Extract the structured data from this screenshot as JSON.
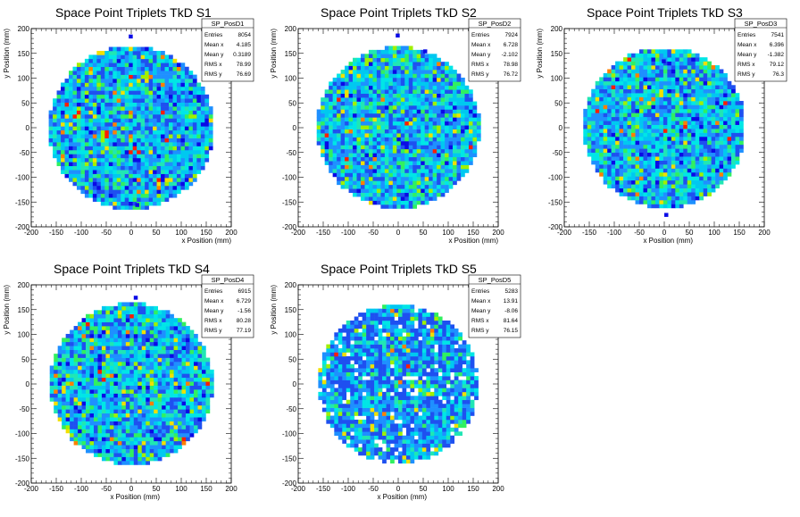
{
  "chart_data": [
    {
      "type": "heatmap",
      "title": "Space Point Triplets TkD S1",
      "xlabel": "x Position (mm)",
      "ylabel": "y Position (mm)",
      "xlim": [
        -200,
        200
      ],
      "ylim": [
        -200,
        200
      ],
      "ticks": [
        "-200",
        "-150",
        "-100",
        "-50",
        "0",
        "50",
        "100",
        "150",
        "200"
      ],
      "distribution": "disk",
      "disk_radius": 165,
      "bin_width": 8,
      "outliers": [
        [
          -5,
          180
        ],
        [
          8,
          -160
        ]
      ],
      "stats": {
        "name": "SP_PosD1",
        "rows": [
          {
            "label": "Entries",
            "value": "8054"
          },
          {
            "label": "Mean x",
            "value": "4.185"
          },
          {
            "label": "Mean y",
            "value": "0.3189"
          },
          {
            "label": "RMS x",
            "value": "78.99"
          },
          {
            "label": "RMS y",
            "value": "76.69"
          }
        ]
      }
    },
    {
      "type": "heatmap",
      "title": "Space Point Triplets TkD S2",
      "xlabel": "x Position (mm)",
      "ylabel": "y Position (mm)",
      "xlim": [
        -200,
        200
      ],
      "ylim": [
        -200,
        200
      ],
      "ticks": [
        "-200",
        "-150",
        "-100",
        "-50",
        "0",
        "50",
        "100",
        "150",
        "200"
      ],
      "distribution": "disk",
      "disk_radius": 163,
      "bin_width": 8,
      "outliers": [
        [
          -5,
          182
        ],
        [
          50,
          150
        ]
      ],
      "stats": {
        "name": "SP_PosD2",
        "rows": [
          {
            "label": "Entries",
            "value": "7924"
          },
          {
            "label": "Mean x",
            "value": "6.728"
          },
          {
            "label": "Mean y",
            "value": "-2.102"
          },
          {
            "label": "RMS x",
            "value": "78.98"
          },
          {
            "label": "RMS y",
            "value": "76.72"
          }
        ]
      }
    },
    {
      "type": "heatmap",
      "title": "Space Point Triplets TkD S3",
      "xlabel": "x Position (mm)",
      "ylabel": "y Position (mm)",
      "xlim": [
        -200,
        200
      ],
      "ylim": [
        -200,
        200
      ],
      "ticks": [
        "-200",
        "-150",
        "-100",
        "-50",
        "0",
        "50",
        "100",
        "150",
        "200"
      ],
      "distribution": "disk",
      "disk_radius": 162,
      "bin_width": 8,
      "outliers": [
        [
          0,
          -180
        ],
        [
          -5,
          130
        ]
      ],
      "stats": {
        "name": "SP_PosD3",
        "rows": [
          {
            "label": "Entries",
            "value": "7541"
          },
          {
            "label": "Mean x",
            "value": "6.396"
          },
          {
            "label": "Mean y",
            "value": "-1.382"
          },
          {
            "label": "RMS x",
            "value": "79.12"
          },
          {
            "label": "RMS y",
            "value": "76.3"
          }
        ]
      }
    },
    {
      "type": "heatmap",
      "title": "Space Point Triplets TkD S4",
      "xlabel": "x Position (mm)",
      "ylabel": "y Position (mm)",
      "xlim": [
        -200,
        200
      ],
      "ylim": [
        -200,
        200
      ],
      "ticks": [
        "-200",
        "-150",
        "-100",
        "-50",
        "0",
        "50",
        "100",
        "150",
        "200"
      ],
      "distribution": "disk",
      "disk_radius": 163,
      "bin_width": 8,
      "outliers": [
        [
          5,
          170
        ]
      ],
      "stats": {
        "name": "SP_PosD4",
        "rows": [
          {
            "label": "Entries",
            "value": "6915"
          },
          {
            "label": "Mean x",
            "value": "6.729"
          },
          {
            "label": "Mean y",
            "value": "-1.56"
          },
          {
            "label": "RMS x",
            "value": "80.28"
          },
          {
            "label": "RMS y",
            "value": "77.19"
          }
        ]
      }
    },
    {
      "type": "heatmap",
      "title": "Space Point Triplets TkD S5",
      "xlabel": "x Position (mm)",
      "ylabel": "y Position (mm)",
      "xlim": [
        -200,
        200
      ],
      "ylim": [
        -200,
        200
      ],
      "ticks": [
        "-200",
        "-150",
        "-100",
        "-50",
        "0",
        "50",
        "100",
        "150",
        "200"
      ],
      "distribution": "disk",
      "disk_radius": 160,
      "bin_width": 8,
      "outliers": [],
      "stats": {
        "name": "SP_PosD5",
        "rows": [
          {
            "label": "Entries",
            "value": "5283"
          },
          {
            "label": "Mean x",
            "value": "13.91"
          },
          {
            "label": "Mean y",
            "value": "-8.06"
          },
          {
            "label": "RMS x",
            "value": "81.64"
          },
          {
            "label": "RMS y",
            "value": "76.15"
          }
        ]
      }
    }
  ],
  "palette": [
    "#0a0ae6",
    "#1e50f0",
    "#1e90ff",
    "#00c8f0",
    "#00e6e6",
    "#20e6b4",
    "#30f060",
    "#a0f000",
    "#f0e000",
    "#ff8000",
    "#ff1e00"
  ],
  "colors": {
    "frame": "#000000",
    "background": "#ffffff"
  }
}
